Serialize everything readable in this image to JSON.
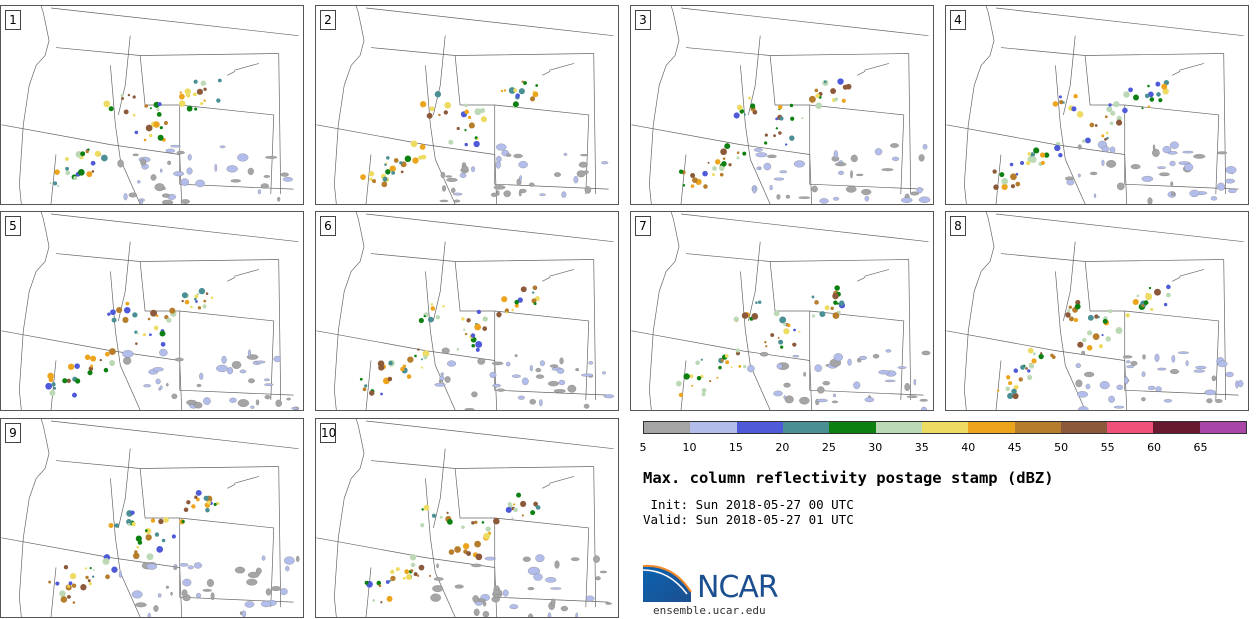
{
  "panels": [
    {
      "label": "1"
    },
    {
      "label": "2"
    },
    {
      "label": "3"
    },
    {
      "label": "4"
    },
    {
      "label": "5"
    },
    {
      "label": "6"
    },
    {
      "label": "7"
    },
    {
      "label": "8"
    },
    {
      "label": "9"
    },
    {
      "label": "10"
    }
  ],
  "colorbar": {
    "ticks": [
      "5",
      "10",
      "15",
      "20",
      "25",
      "30",
      "35",
      "40",
      "45",
      "50",
      "55",
      "60",
      "65"
    ],
    "colors": [
      "#a5a5a5",
      "#b3bdeb",
      "#4f5ad8",
      "#4a8f94",
      "#0c8010",
      "#bcd9b5",
      "#eedc62",
      "#eca41c",
      "#b67d2d",
      "#8c5a3b",
      "#ef517a",
      "#68182f",
      "#a947a8"
    ]
  },
  "title": "Max. column reflectivity postage stamp (dBZ)",
  "init": " Init: Sun 2018-05-27 00 UTC",
  "valid": "Valid: Sun 2018-05-27 01 UTC",
  "logo_text": "NCAR",
  "site": "ensemble.ucar.edu"
}
